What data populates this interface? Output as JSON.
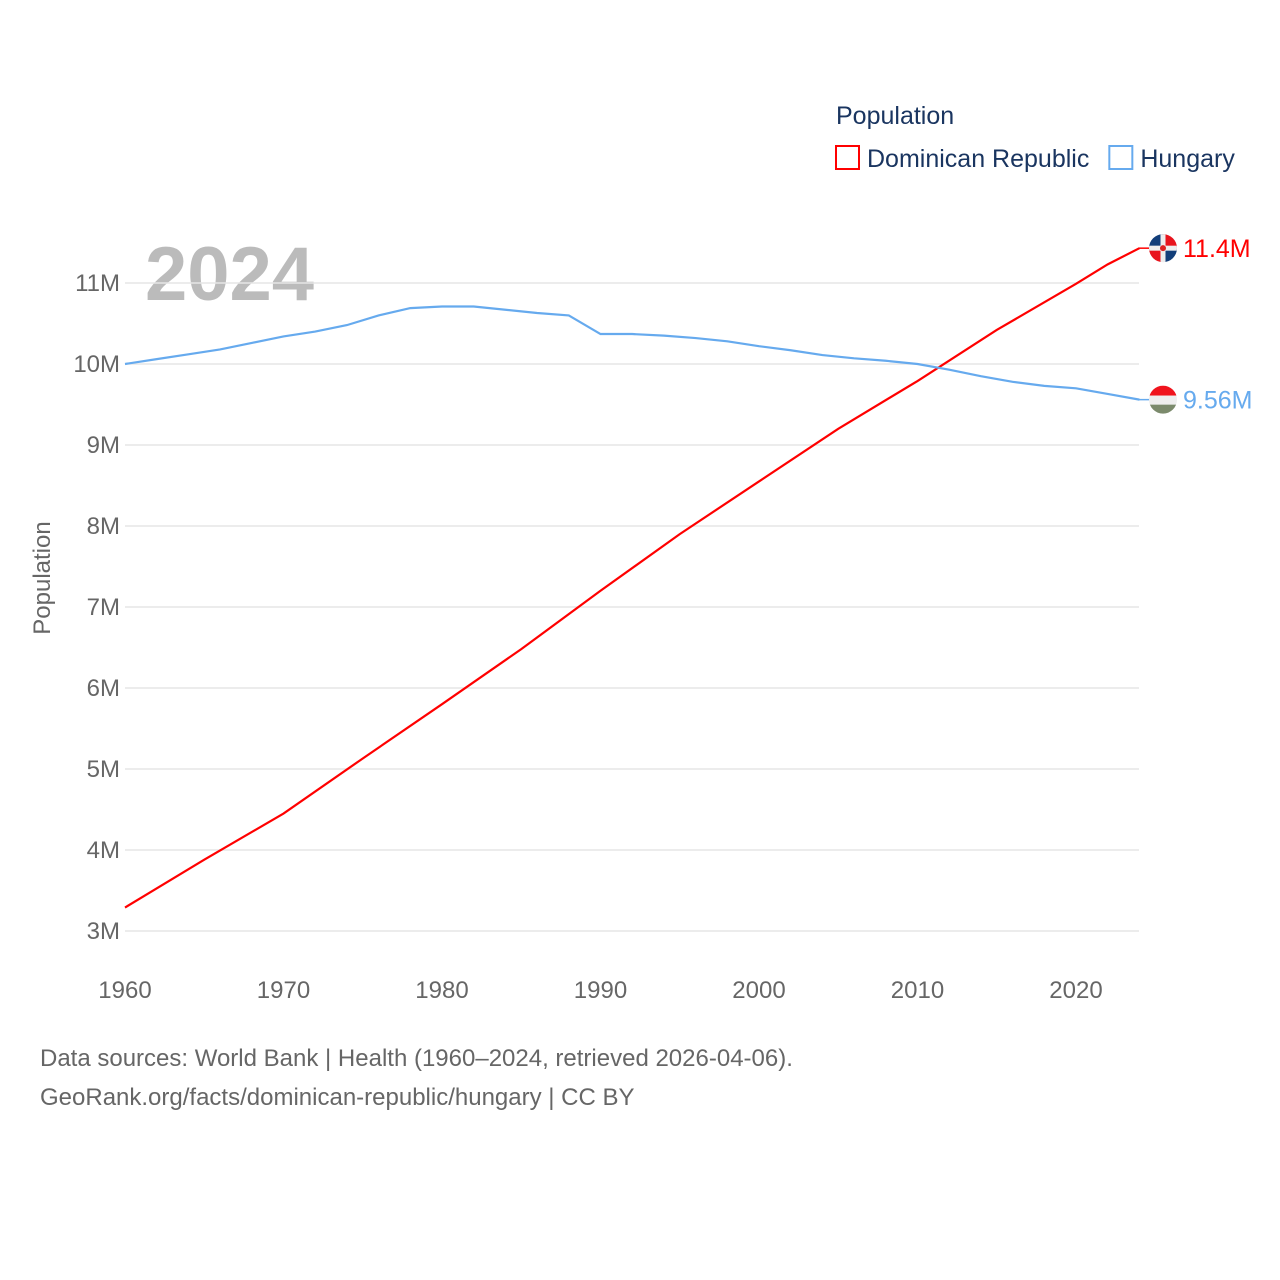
{
  "chart_data": {
    "type": "line",
    "year_label": "2024",
    "ylabel": "Population",
    "xlabel": "",
    "legend_title": "Population",
    "legend_position": "top-right",
    "xlim": [
      1960,
      2024
    ],
    "ylim": [
      3000000,
      11000000
    ],
    "x_ticks": [
      1960,
      1970,
      1980,
      1990,
      2000,
      2010,
      2020
    ],
    "x_tick_labels": [
      "1960",
      "1970",
      "1980",
      "1990",
      "2000",
      "2010",
      "2020"
    ],
    "y_ticks": [
      3000000,
      4000000,
      5000000,
      6000000,
      7000000,
      8000000,
      9000000,
      10000000,
      11000000
    ],
    "y_tick_labels": [
      "3M",
      "4M",
      "5M",
      "6M",
      "7M",
      "8M",
      "9M",
      "10M",
      "11M"
    ],
    "grid": true,
    "series": [
      {
        "name": "Dominican Republic",
        "color": "#ff0000",
        "end_label": "11.4M",
        "flag": "dominican-republic-flag-icon",
        "x": [
          1960,
          1965,
          1970,
          1975,
          1980,
          1985,
          1990,
          1995,
          2000,
          2005,
          2010,
          2015,
          2020,
          2022,
          2024
        ],
        "values": [
          3290000,
          3880000,
          4450000,
          5130000,
          5800000,
          6480000,
          7200000,
          7900000,
          8550000,
          9200000,
          9790000,
          10420000,
          10990000,
          11230000,
          11430000
        ]
      },
      {
        "name": "Hungary",
        "color": "#66aaee",
        "end_label": "9.56M",
        "flag": "hungary-flag-icon",
        "x": [
          1960,
          1962,
          1964,
          1966,
          1968,
          1970,
          1972,
          1974,
          1976,
          1978,
          1980,
          1982,
          1984,
          1986,
          1988,
          1990,
          1992,
          1994,
          1996,
          1998,
          2000,
          2002,
          2004,
          2006,
          2008,
          2010,
          2012,
          2014,
          2016,
          2018,
          2020,
          2022,
          2024
        ],
        "values": [
          10000000,
          10060000,
          10120000,
          10180000,
          10260000,
          10340000,
          10400000,
          10480000,
          10600000,
          10690000,
          10710000,
          10710000,
          10670000,
          10630000,
          10600000,
          10370000,
          10370000,
          10350000,
          10320000,
          10280000,
          10220000,
          10170000,
          10110000,
          10070000,
          10040000,
          10000000,
          9930000,
          9850000,
          9780000,
          9730000,
          9700000,
          9630000,
          9560000
        ]
      }
    ]
  },
  "footer": {
    "line1": "Data sources: World Bank | Health (1960–2024, retrieved 2026-04-06).",
    "line2": "GeoRank.org/facts/dominican-republic/hungary | CC BY"
  }
}
